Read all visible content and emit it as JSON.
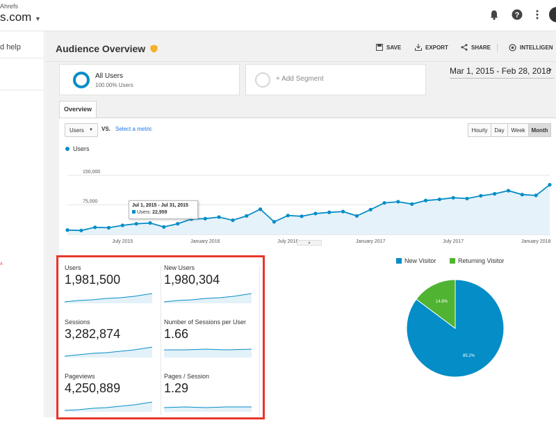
{
  "account": {
    "small": "Ahrefs",
    "name": "s.com"
  },
  "sidebar": {
    "help": "d help",
    "red_text": "A"
  },
  "header": {
    "title": "Audience Overview"
  },
  "toolbar": {
    "save": "SAVE",
    "export": "EXPORT",
    "share": "SHARE",
    "intelligence": "INTELLIGEN"
  },
  "segments": {
    "all_users": "All Users",
    "all_users_pct": "100.00% Users",
    "add_segment": "+ Add Segment"
  },
  "date_range": "Mar 1, 2015 - Feb 28, 2018",
  "tabs": {
    "overview": "Overview"
  },
  "chart_controls": {
    "metric": "Users",
    "vs": "VS.",
    "select_metric": "Select a metric",
    "granularity": [
      "Hourly",
      "Day",
      "Week",
      "Month"
    ],
    "selected": "Month"
  },
  "tooltip": {
    "title": "Jul 1, 2015 - Jul 31, 2015",
    "label": "Users:",
    "value": "22,959"
  },
  "colors": {
    "primary": "#058dc7",
    "secondary": "#50b432",
    "red": "#e8372a"
  },
  "chart_data": {
    "type": "line",
    "title": "",
    "legend": "Users",
    "ylim": [
      0,
      150000
    ],
    "y_ticks": [
      "150,000",
      "75,000"
    ],
    "x_ticks": [
      "July 2015",
      "January 2016",
      "July 2016",
      "January 2017",
      "July 2017",
      "January 2018"
    ],
    "series": [
      {
        "name": "Users",
        "values": [
          11000,
          10000,
          18000,
          17000,
          22959,
          27000,
          29000,
          19000,
          27000,
          39000,
          40000,
          44000,
          36000,
          47000,
          64000,
          32000,
          48000,
          46000,
          53000,
          56000,
          58000,
          47000,
          63000,
          80000,
          83000,
          77000,
          86000,
          89000,
          93000,
          91000,
          98000,
          103000,
          111000,
          101000,
          99000,
          126000
        ]
      }
    ]
  },
  "metrics": [
    {
      "label": "Users",
      "value": "1,981,500"
    },
    {
      "label": "New Users",
      "value": "1,980,304"
    },
    {
      "label": "Sessions",
      "value": "3,282,874"
    },
    {
      "label": "Number of Sessions per User",
      "value": "1.66"
    },
    {
      "label": "Pageviews",
      "value": "4,250,889"
    },
    {
      "label": "Pages / Session",
      "value": "1.29"
    }
  ],
  "pie": {
    "type": "pie",
    "legend": [
      "New Visitor",
      "Returning Visitor"
    ],
    "values": [
      85.2,
      14.8
    ],
    "labels": [
      "85.2%",
      "14.8%"
    ]
  }
}
